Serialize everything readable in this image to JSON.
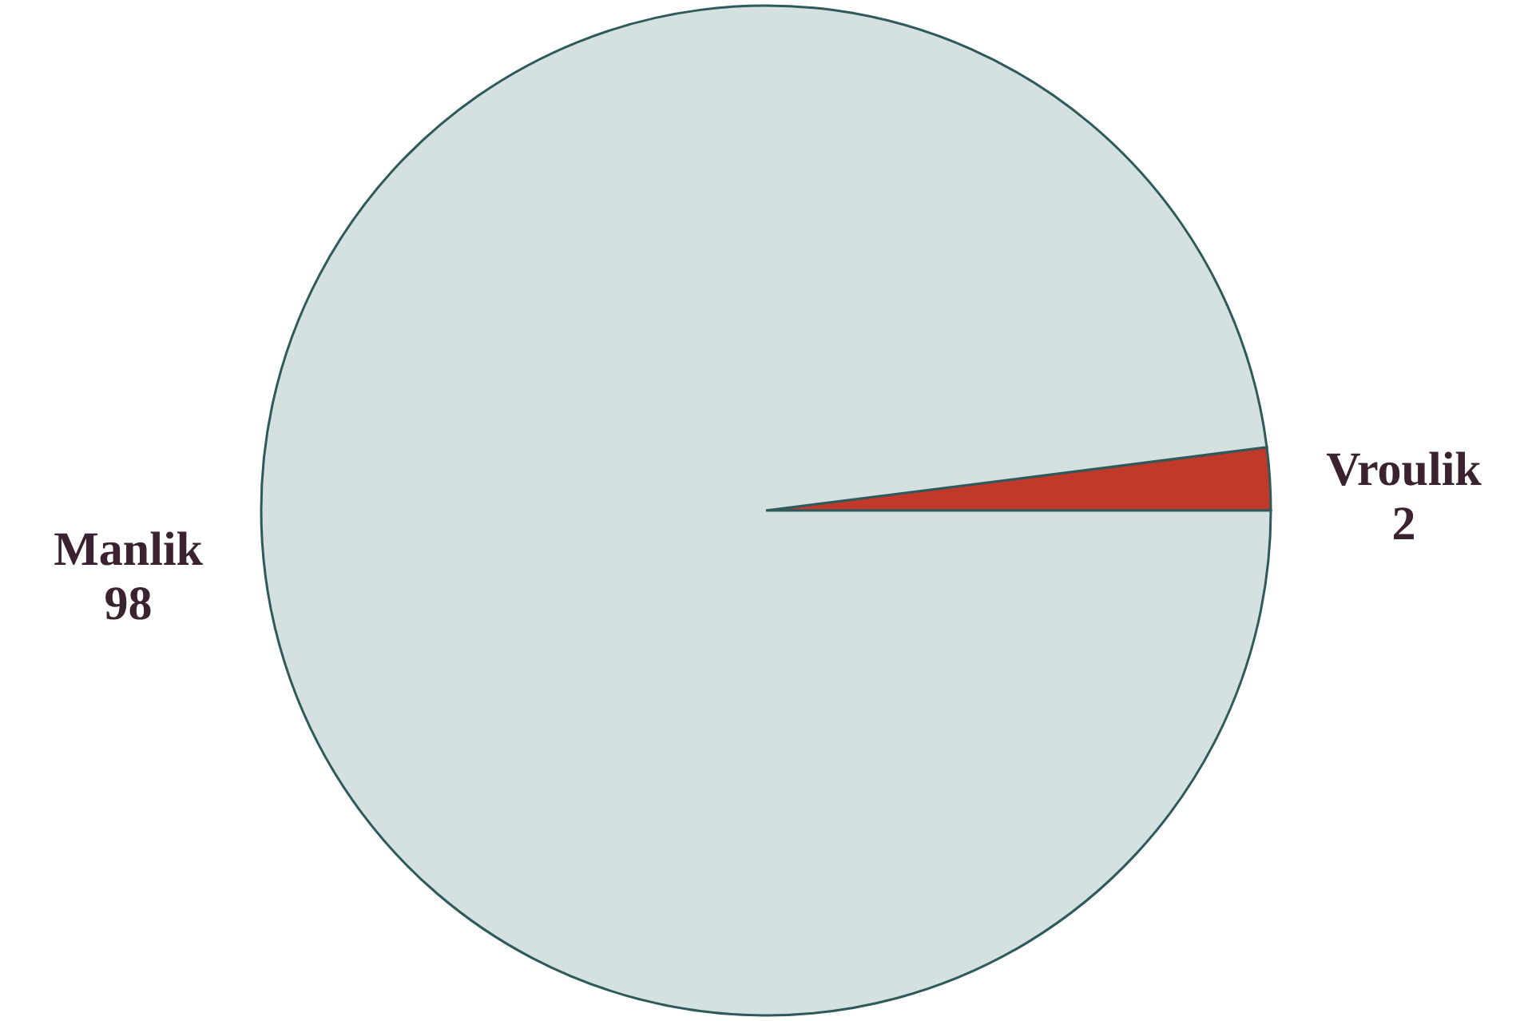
{
  "chart_data": {
    "type": "pie",
    "categories": [
      "Vroulik",
      "Manlik"
    ],
    "values": [
      2,
      98
    ],
    "colors": [
      "#c0392b",
      "#d5e0e0"
    ],
    "data_labels": true
  }
}
